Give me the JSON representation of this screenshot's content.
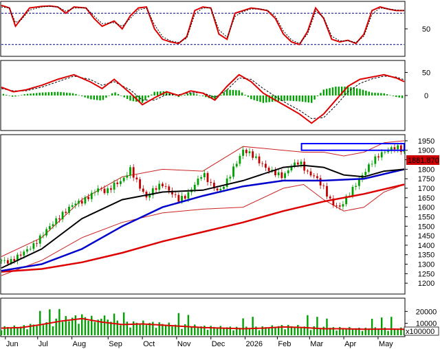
{
  "colors": {
    "price_up": "#00a000",
    "price_down": "#c00000",
    "ma_red": "#dd0000",
    "ma_blue": "#0000cc",
    "ma_black": "#000000",
    "bollinger": "#cc2222",
    "signal": "#000000",
    "grid": "#00008b",
    "highlight_box": "#0000ff",
    "current_badge_bg": "#cc0000",
    "current_badge_text": "#ffffff"
  },
  "chart_data": [
    {
      "type": "line",
      "panel": "stochastic",
      "x_range": [
        0,
        200
      ],
      "ylim": [
        0,
        100
      ],
      "yticks": [
        {
          "value": 50,
          "label": "50"
        }
      ],
      "levels": [
        20,
        80
      ],
      "series": [
        {
          "role": "k",
          "x": [
            0,
            4,
            7,
            10,
            14,
            20,
            24,
            28,
            32,
            36,
            42,
            46,
            50,
            56,
            60,
            64,
            68,
            72,
            76,
            80,
            84,
            88,
            92,
            96,
            100,
            104,
            108,
            112,
            116,
            120,
            124,
            128,
            132,
            136,
            140,
            144,
            148,
            152,
            156,
            160,
            164,
            168,
            172,
            176,
            180,
            184,
            188,
            192,
            196,
            200
          ],
          "values": [
            95,
            90,
            55,
            70,
            90,
            93,
            94,
            92,
            80,
            92,
            90,
            70,
            55,
            65,
            50,
            75,
            90,
            92,
            50,
            30,
            25,
            22,
            35,
            85,
            92,
            90,
            40,
            30,
            80,
            85,
            90,
            88,
            85,
            70,
            40,
            25,
            20,
            45,
            90,
            70,
            30,
            25,
            28,
            22,
            40,
            85,
            92,
            88,
            85,
            85
          ]
        },
        {
          "role": "d",
          "x": [
            0,
            4,
            7,
            10,
            14,
            20,
            24,
            28,
            32,
            36,
            42,
            46,
            50,
            56,
            60,
            64,
            68,
            72,
            76,
            80,
            84,
            88,
            92,
            96,
            100,
            104,
            108,
            112,
            116,
            120,
            124,
            128,
            132,
            136,
            140,
            144,
            148,
            152,
            156,
            160,
            164,
            168,
            172,
            176,
            180,
            184,
            188,
            192,
            196,
            200
          ],
          "values": [
            92,
            90,
            62,
            68,
            86,
            92,
            93,
            92,
            84,
            90,
            90,
            75,
            60,
            62,
            55,
            70,
            86,
            90,
            58,
            35,
            27,
            24,
            32,
            78,
            90,
            90,
            48,
            34,
            74,
            83,
            88,
            88,
            86,
            74,
            46,
            29,
            22,
            40,
            84,
            72,
            36,
            27,
            27,
            24,
            36,
            78,
            90,
            88,
            86,
            85
          ]
        }
      ]
    },
    {
      "type": "bar",
      "panel": "macd",
      "x_range": [
        0,
        200
      ],
      "ylim": [
        -70,
        70
      ],
      "yticks": [
        {
          "value": 50,
          "label": "50"
        },
        {
          "value": 0,
          "label": "0"
        }
      ],
      "lines": [
        {
          "role": "macd",
          "x": [
            0,
            6,
            12,
            20,
            28,
            36,
            44,
            50,
            56,
            64,
            70,
            76,
            82,
            88,
            94,
            100,
            106,
            112,
            118,
            124,
            130,
            136,
            142,
            148,
            154,
            160,
            166,
            172,
            178,
            184,
            190,
            196,
            200
          ],
          "values": [
            18,
            8,
            12,
            22,
            35,
            45,
            30,
            15,
            35,
            5,
            -20,
            -5,
            8,
            0,
            10,
            5,
            -10,
            20,
            45,
            30,
            5,
            -10,
            -25,
            -40,
            -60,
            -40,
            -10,
            20,
            35,
            40,
            45,
            38,
            30
          ]
        },
        {
          "role": "signal",
          "x": [
            0,
            6,
            12,
            20,
            28,
            36,
            44,
            50,
            56,
            64,
            70,
            76,
            82,
            88,
            94,
            100,
            106,
            112,
            118,
            124,
            130,
            136,
            142,
            148,
            154,
            160,
            166,
            172,
            178,
            184,
            190,
            196,
            200
          ],
          "values": [
            15,
            10,
            10,
            18,
            30,
            42,
            35,
            22,
            30,
            12,
            -10,
            -10,
            2,
            2,
            6,
            6,
            -4,
            12,
            38,
            35,
            15,
            -2,
            -18,
            -32,
            -50,
            -48,
            -22,
            8,
            26,
            36,
            42,
            40,
            34
          ]
        }
      ]
    },
    {
      "type": "line",
      "panel": "price",
      "x_range": [
        0,
        200
      ],
      "ylim": [
        1150,
        1975
      ],
      "yticks": [
        {
          "value": 1950,
          "label": "1950"
        },
        {
          "value": 1900,
          "label": "1900"
        },
        {
          "value": 1850,
          "label": "1850"
        },
        {
          "value": 1800,
          "label": "1800"
        },
        {
          "value": 1750,
          "label": "1750"
        },
        {
          "value": 1700,
          "label": "1700"
        },
        {
          "value": 1650,
          "label": "1650"
        },
        {
          "value": 1600,
          "label": "1600"
        },
        {
          "value": 1550,
          "label": "1550"
        },
        {
          "value": 1500,
          "label": "1500"
        },
        {
          "value": 1450,
          "label": "1450"
        },
        {
          "value": 1400,
          "label": "1400"
        },
        {
          "value": 1350,
          "label": "1350"
        },
        {
          "value": 1300,
          "label": "1300"
        },
        {
          "value": 1250,
          "label": "1250"
        },
        {
          "value": 1200,
          "label": "1200"
        }
      ],
      "current_value_label": "1881.870",
      "highlight_box": {
        "x_from": 149,
        "x_to": 200,
        "y_from": 1900,
        "y_to": 1935
      },
      "series": [
        {
          "role": "close",
          "x": [
            0,
            4,
            8,
            12,
            16,
            20,
            24,
            28,
            32,
            36,
            40,
            44,
            48,
            52,
            56,
            60,
            64,
            68,
            72,
            76,
            80,
            84,
            88,
            92,
            96,
            100,
            104,
            108,
            112,
            116,
            120,
            124,
            128,
            132,
            136,
            140,
            144,
            148,
            152,
            156,
            160,
            164,
            168,
            172,
            176,
            180,
            184,
            188,
            192,
            196,
            200
          ],
          "values": [
            1320,
            1310,
            1340,
            1370,
            1400,
            1450,
            1500,
            1540,
            1580,
            1620,
            1630,
            1660,
            1700,
            1680,
            1720,
            1740,
            1800,
            1720,
            1650,
            1700,
            1720,
            1680,
            1640,
            1660,
            1720,
            1780,
            1720,
            1680,
            1740,
            1820,
            1900,
            1880,
            1840,
            1800,
            1780,
            1760,
            1820,
            1840,
            1780,
            1760,
            1700,
            1620,
            1600,
            1660,
            1720,
            1780,
            1840,
            1880,
            1900,
            1920,
            1890
          ]
        },
        {
          "role": "ma_short",
          "x": [
            0,
            20,
            40,
            60,
            80,
            100,
            120,
            140,
            150,
            160,
            170,
            180,
            190,
            200
          ],
          "values": [
            1280,
            1380,
            1540,
            1640,
            1680,
            1690,
            1740,
            1810,
            1820,
            1810,
            1770,
            1760,
            1790,
            1800
          ]
        },
        {
          "role": "ma_mid",
          "x": [
            0,
            20,
            40,
            60,
            80,
            100,
            120,
            140,
            160,
            180,
            200
          ],
          "values": [
            1265,
            1300,
            1380,
            1500,
            1600,
            1660,
            1710,
            1740,
            1740,
            1750,
            1800
          ]
        },
        {
          "role": "ma_long",
          "x": [
            0,
            20,
            40,
            60,
            80,
            100,
            120,
            140,
            160,
            180,
            200
          ],
          "values": [
            1260,
            1275,
            1310,
            1360,
            1420,
            1470,
            1520,
            1580,
            1630,
            1670,
            1720
          ]
        },
        {
          "role": "bb_upper",
          "x": [
            0,
            20,
            40,
            60,
            80,
            100,
            120,
            140,
            150,
            160,
            170,
            180,
            190,
            200
          ],
          "values": [
            1340,
            1440,
            1640,
            1760,
            1800,
            1790,
            1920,
            1900,
            1890,
            1890,
            1870,
            1890,
            1940,
            1950
          ]
        },
        {
          "role": "bb_lower",
          "x": [
            0,
            20,
            40,
            60,
            80,
            100,
            120,
            140,
            150,
            160,
            170,
            180,
            190,
            200
          ],
          "values": [
            1240,
            1320,
            1440,
            1520,
            1570,
            1590,
            1600,
            1700,
            1720,
            1640,
            1580,
            1600,
            1680,
            1720
          ]
        }
      ]
    },
    {
      "type": "bar",
      "panel": "volume",
      "x_range": [
        0,
        200
      ],
      "ylim": [
        0,
        30000
      ],
      "yticks": [
        {
          "value": 20000,
          "label": "20000"
        },
        {
          "value": 10000,
          "label": "10000"
        }
      ],
      "multiplier_label": "x100000",
      "x_months": [
        {
          "x": 2,
          "label": "Jun"
        },
        {
          "x": 18,
          "label": "Jul"
        },
        {
          "x": 35,
          "label": "Aug"
        },
        {
          "x": 53,
          "label": "Sep"
        },
        {
          "x": 70,
          "label": "Oct"
        },
        {
          "x": 87,
          "label": "Nov"
        },
        {
          "x": 104,
          "label": "Dec"
        },
        {
          "x": 121,
          "label": "2026"
        },
        {
          "x": 137,
          "label": "Feb"
        },
        {
          "x": 153,
          "label": "Mar"
        },
        {
          "x": 170,
          "label": "Apr"
        },
        {
          "x": 187,
          "label": "May"
        }
      ],
      "volume_ma": {
        "x": [
          0,
          10,
          20,
          30,
          40,
          50,
          60,
          70,
          80,
          90,
          100,
          110,
          120,
          130,
          140,
          150,
          160,
          170,
          180,
          190,
          200
        ],
        "values": [
          6000,
          6500,
          9000,
          12000,
          14000,
          11000,
          9000,
          9500,
          8500,
          7500,
          6500,
          6000,
          5500,
          6000,
          7000,
          6500,
          5500,
          5500,
          5000,
          5200,
          5000
        ]
      }
    }
  ]
}
